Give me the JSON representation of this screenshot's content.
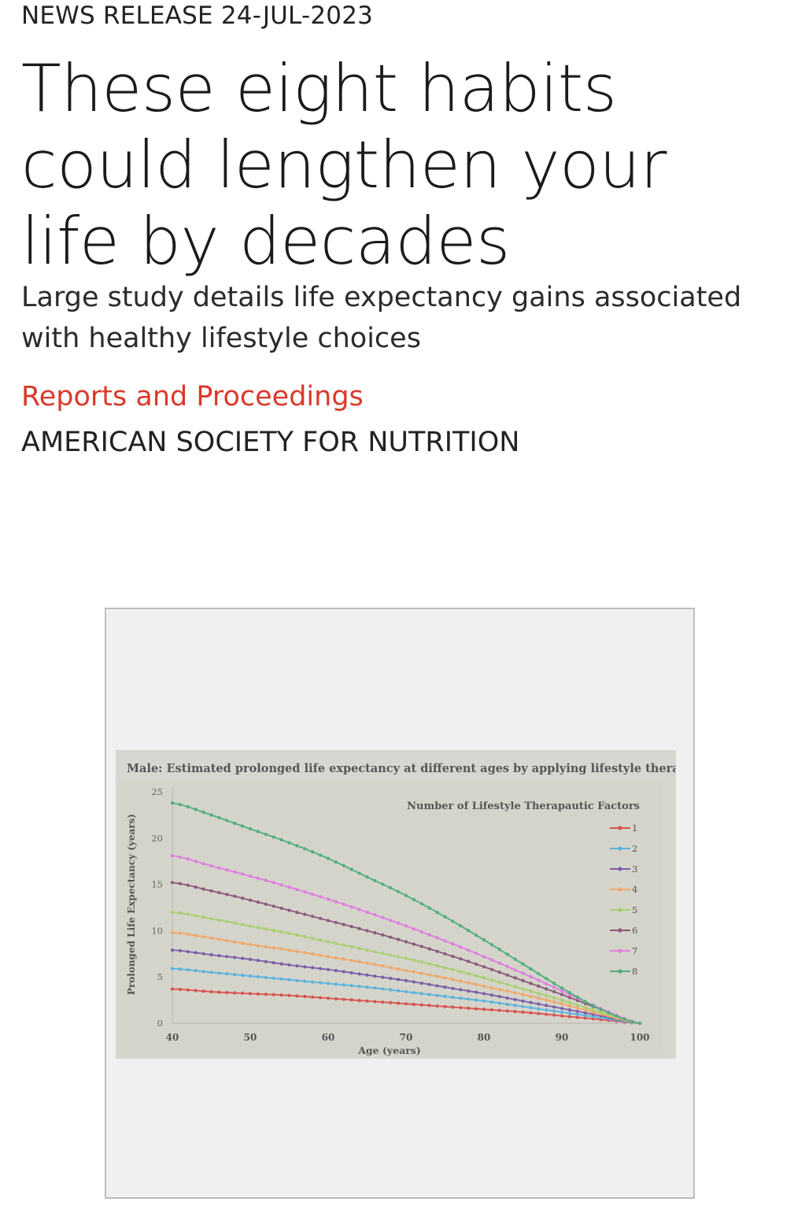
{
  "article": {
    "kicker": "NEWS RELEASE 24-JUL-2023",
    "headline": "These eight habits could lengthen your life by decades",
    "subheadline": "Large study details life expectancy gains associated with healthy lifestyle choices",
    "category": "Reports and Proceedings",
    "organization": "AMERICAN SOCIETY FOR NUTRITION"
  },
  "chart_data": {
    "type": "line",
    "title": "Male: Estimated prolonged life expectancy at different ages by applying lifestyle therapies",
    "xlabel": "Age (years)",
    "ylabel": "Prolonged Life Expectancy (years)",
    "xlim": [
      40,
      100
    ],
    "ylim": [
      0,
      25
    ],
    "xticks": [
      "40",
      "50",
      "60",
      "70",
      "80",
      "90",
      "100"
    ],
    "yticks": [
      "0",
      "5",
      "10",
      "15",
      "20",
      "25"
    ],
    "legend_title": "Number of Lifestyle Therapautic Factors",
    "legend_position": "top-right",
    "grid": false,
    "x": [
      40,
      45,
      50,
      55,
      60,
      65,
      70,
      75,
      80,
      85,
      90,
      95,
      100
    ],
    "series": [
      {
        "name": "1",
        "color": "#d9534f",
        "values": [
          3.7,
          3.4,
          3.2,
          3.0,
          2.7,
          2.4,
          2.1,
          1.8,
          1.5,
          1.2,
          0.8,
          0.4,
          0
        ]
      },
      {
        "name": "2",
        "color": "#5bb3dd",
        "values": [
          5.9,
          5.5,
          5.1,
          4.7,
          4.3,
          3.9,
          3.4,
          2.9,
          2.4,
          1.8,
          1.2,
          0.6,
          0
        ]
      },
      {
        "name": "3",
        "color": "#7d5ea8",
        "values": [
          7.9,
          7.4,
          6.9,
          6.3,
          5.8,
          5.2,
          4.6,
          3.9,
          3.2,
          2.4,
          1.6,
          0.8,
          0
        ]
      },
      {
        "name": "4",
        "color": "#f0a868",
        "values": [
          9.8,
          9.2,
          8.5,
          7.9,
          7.2,
          6.5,
          5.7,
          4.9,
          4.0,
          3.1,
          2.1,
          1.0,
          0
        ]
      },
      {
        "name": "5",
        "color": "#a9cf6f",
        "values": [
          12.0,
          11.3,
          10.5,
          9.7,
          8.8,
          7.9,
          7.0,
          6.0,
          4.9,
          3.7,
          2.5,
          1.2,
          0
        ]
      },
      {
        "name": "6",
        "color": "#8c5a7a",
        "values": [
          15.2,
          14.3,
          13.3,
          12.2,
          11.1,
          10.0,
          8.8,
          7.5,
          6.1,
          4.6,
          3.1,
          1.5,
          0
        ]
      },
      {
        "name": "7",
        "color": "#e07de0",
        "values": [
          18.1,
          17.0,
          15.9,
          14.7,
          13.4,
          12.0,
          10.5,
          8.9,
          7.2,
          5.4,
          3.5,
          1.6,
          0
        ]
      },
      {
        "name": "8",
        "color": "#4fae7e",
        "values": [
          23.8,
          22.5,
          21.0,
          19.5,
          17.8,
          15.8,
          13.8,
          11.5,
          9.0,
          6.4,
          3.8,
          1.5,
          0
        ]
      }
    ]
  }
}
